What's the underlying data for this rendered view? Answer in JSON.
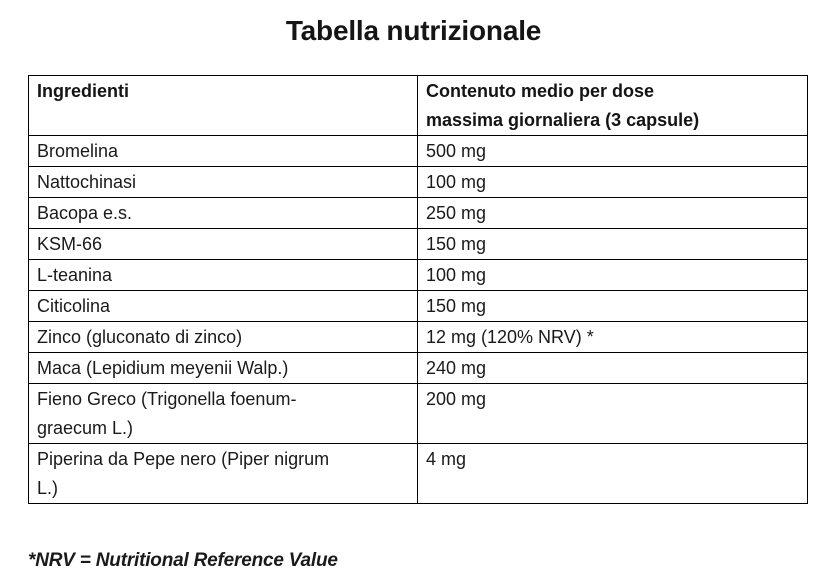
{
  "page": {
    "title": "Tabella nutrizionale",
    "footnote": "*NRV = Nutritional Reference Value"
  },
  "table": {
    "columns": [
      {
        "label": "Ingredienti"
      },
      {
        "label": "Contenuto medio per dose massima giornaliera (3 capsule)"
      }
    ],
    "rows": [
      {
        "ingredient": "Bromelina",
        "amount": "500 mg"
      },
      {
        "ingredient": "Nattochinasi",
        "amount": "100 mg"
      },
      {
        "ingredient": "Bacopa e.s.",
        "amount": "250 mg"
      },
      {
        "ingredient": "KSM-66",
        "amount": "150 mg"
      },
      {
        "ingredient": "L-teanina",
        "amount": "100 mg"
      },
      {
        "ingredient": "Citicolina",
        "amount": "150 mg"
      },
      {
        "ingredient": "Zinco (gluconato di zinco)",
        "amount": "12 mg (120% NRV) *"
      },
      {
        "ingredient": "Maca (Lepidium meyenii Walp.)",
        "amount": "240 mg"
      },
      {
        "ingredient": "Fieno Greco (Trigonella foenum-graecum L.)",
        "amount": "200 mg"
      },
      {
        "ingredient": "Piperina da Pepe nero (Piper nigrum L.)",
        "amount": "4 mg"
      }
    ]
  }
}
